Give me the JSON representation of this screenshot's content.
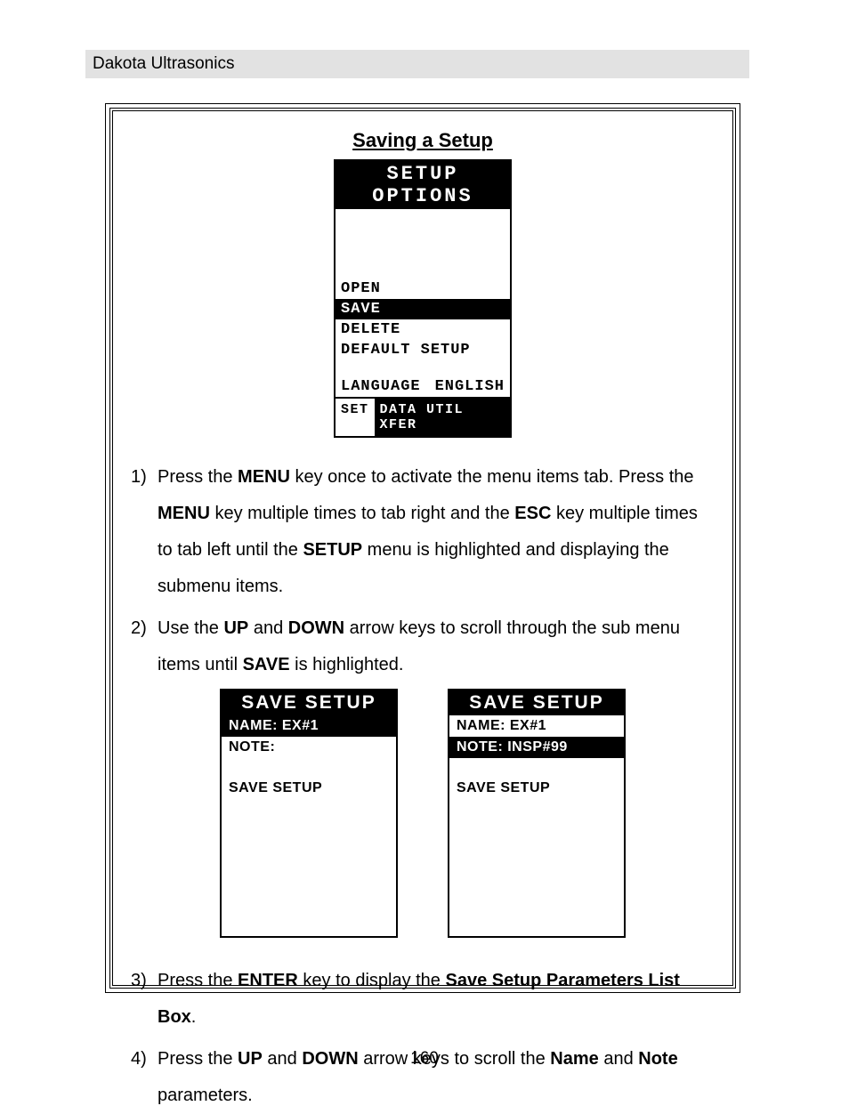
{
  "header": "Dakota Ultrasonics",
  "page_number": "160",
  "section_title": "Saving a Setup",
  "setup_screen": {
    "title": "SETUP OPTIONS",
    "rows": [
      {
        "label": "OPEN",
        "value": "",
        "dark": false
      },
      {
        "label": "SAVE",
        "value": "",
        "dark": true
      },
      {
        "label": "DELETE",
        "value": "",
        "dark": false
      },
      {
        "label": "DEFAULT SETUP",
        "value": "",
        "dark": false
      }
    ],
    "lang_label": "LANGUAGE",
    "lang_value": "ENGLISH",
    "bottom_left": "SET",
    "bottom_right": "DATA UTIL XFER"
  },
  "save_a": {
    "title": "SAVE SETUP",
    "line1": "NAME: EX#1",
    "line1_dark": true,
    "line2": "NOTE:",
    "line2_dark": false,
    "line3": "SAVE SETUP"
  },
  "save_b": {
    "title": "SAVE SETUP",
    "line1": "NAME: EX#1",
    "line1_dark": false,
    "line2": "NOTE: INSP#99",
    "line2_dark": true,
    "line3": "SAVE SETUP"
  },
  "steps": {
    "s1_num": "1)",
    "s1_a": "Press the ",
    "s1_b": "MENU",
    "s1_c": " key once to activate the menu items tab.  Press the ",
    "s1_d": "MENU",
    "s1_e": " key multiple times to tab right and the ",
    "s1_f": "ESC",
    "s1_g": " key multiple times to tab left until the ",
    "s1_h": "SETUP",
    "s1_i": " menu is highlighted and displaying the submenu items.",
    "s2_num": "2)",
    "s2_a": " Use the ",
    "s2_b": "UP",
    "s2_c": " and ",
    "s2_d": "DOWN",
    "s2_e": " arrow keys to scroll through the sub menu items until ",
    "s2_f": "SAVE",
    "s2_g": " is highlighted.",
    "s3_num": "3)",
    "s3_a": "Press the ",
    "s3_b": "ENTER",
    "s3_c": " key to display the ",
    "s3_d": "Save Setup Parameters List Box",
    "s3_e": ".",
    "s4_num": "4)",
    "s4_a": "Press the ",
    "s4_b": "UP",
    "s4_c": " and ",
    "s4_d": "DOWN",
    "s4_e": " arrow keys to scroll the ",
    "s4_f": "Name",
    "s4_g": " and ",
    "s4_h": "Note",
    "s4_i": " parameters."
  }
}
